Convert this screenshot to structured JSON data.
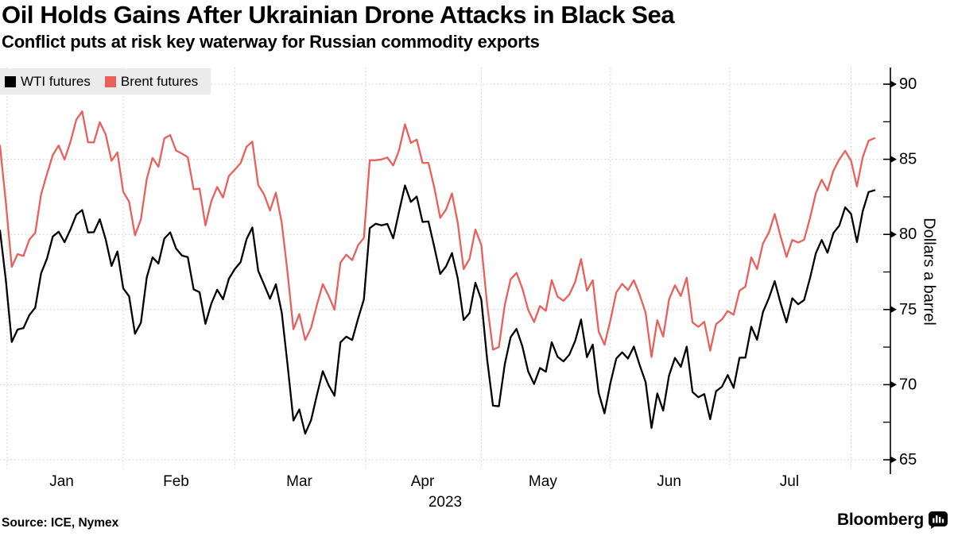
{
  "header": {
    "title": "Oil Holds Gains After Ukrainian Drone Attacks in Black Sea",
    "subtitle": "Conflict puts at risk key waterway for Russian commodity exports"
  },
  "footer": {
    "source": "Source: ICE, Nymex",
    "brand": "Bloomberg"
  },
  "chart_data": {
    "type": "line",
    "title": "Oil Holds Gains After Ukrainian Drone Attacks in Black Sea",
    "subtitle": "Conflict puts at risk key waterway for Russian commodity exports",
    "ylabel": "Dollars a barrel",
    "xlabel": "",
    "year_label": "2023",
    "ylim": [
      65,
      90
    ],
    "yticks": [
      65,
      70,
      75,
      80,
      85,
      90
    ],
    "yticks_minor": [
      67.5,
      72.5,
      77.5,
      82.5,
      87.5
    ],
    "grid": true,
    "legend_position": "top-left",
    "colors": {
      "grid": "#c9c9c9",
      "axis": "#000000",
      "legend_bg": "#ebebeb",
      "wti": "#000000",
      "brent": "#e85f5c"
    },
    "months": [
      {
        "label": "Jan",
        "center_idx": 10.5
      },
      {
        "label": "Feb",
        "center_idx": 30
      },
      {
        "label": "Mar",
        "center_idx": 51
      },
      {
        "label": "Apr",
        "center_idx": 72
      },
      {
        "label": "May",
        "center_idx": 92.5
      },
      {
        "label": "Jun",
        "center_idx": 114
      },
      {
        "label": "Jul",
        "center_idx": 134.5
      }
    ],
    "month_gridline_idx": [
      1.2,
      21,
      40,
      62.33,
      82,
      104,
      124.33,
      145
    ],
    "dates": [
      "2022-12-30",
      "2023-01-03",
      "2023-01-04",
      "2023-01-05",
      "2023-01-06",
      "2023-01-09",
      "2023-01-10",
      "2023-01-11",
      "2023-01-12",
      "2023-01-13",
      "2023-01-17",
      "2023-01-18",
      "2023-01-19",
      "2023-01-20",
      "2023-01-23",
      "2023-01-24",
      "2023-01-25",
      "2023-01-26",
      "2023-01-27",
      "2023-01-30",
      "2023-01-31",
      "2023-02-01",
      "2023-02-02",
      "2023-02-03",
      "2023-02-06",
      "2023-02-07",
      "2023-02-08",
      "2023-02-09",
      "2023-02-10",
      "2023-02-13",
      "2023-02-14",
      "2023-02-15",
      "2023-02-16",
      "2023-02-17",
      "2023-02-21",
      "2023-02-22",
      "2023-02-23",
      "2023-02-24",
      "2023-02-27",
      "2023-02-28",
      "2023-03-01",
      "2023-03-02",
      "2023-03-03",
      "2023-03-06",
      "2023-03-07",
      "2023-03-08",
      "2023-03-09",
      "2023-03-10",
      "2023-03-13",
      "2023-03-14",
      "2023-03-15",
      "2023-03-16",
      "2023-03-17",
      "2023-03-20",
      "2023-03-21",
      "2023-03-22",
      "2023-03-23",
      "2023-03-24",
      "2023-03-27",
      "2023-03-28",
      "2023-03-29",
      "2023-03-30",
      "2023-03-31",
      "2023-04-03",
      "2023-04-04",
      "2023-04-05",
      "2023-04-06",
      "2023-04-10",
      "2023-04-11",
      "2023-04-12",
      "2023-04-13",
      "2023-04-14",
      "2023-04-17",
      "2023-04-18",
      "2023-04-19",
      "2023-04-20",
      "2023-04-21",
      "2023-04-24",
      "2023-04-25",
      "2023-04-26",
      "2023-04-27",
      "2023-04-28",
      "2023-05-01",
      "2023-05-02",
      "2023-05-03",
      "2023-05-04",
      "2023-05-05",
      "2023-05-08",
      "2023-05-09",
      "2023-05-10",
      "2023-05-11",
      "2023-05-12",
      "2023-05-15",
      "2023-05-16",
      "2023-05-17",
      "2023-05-18",
      "2023-05-19",
      "2023-05-22",
      "2023-05-23",
      "2023-05-24",
      "2023-05-25",
      "2023-05-26",
      "2023-05-30",
      "2023-05-31",
      "2023-06-01",
      "2023-06-02",
      "2023-06-05",
      "2023-06-06",
      "2023-06-07",
      "2023-06-08",
      "2023-06-09",
      "2023-06-12",
      "2023-06-13",
      "2023-06-14",
      "2023-06-15",
      "2023-06-16",
      "2023-06-20",
      "2023-06-21",
      "2023-06-22",
      "2023-06-23",
      "2023-06-26",
      "2023-06-27",
      "2023-06-28",
      "2023-06-29",
      "2023-06-30",
      "2023-07-03",
      "2023-07-05",
      "2023-07-06",
      "2023-07-07",
      "2023-07-10",
      "2023-07-11",
      "2023-07-12",
      "2023-07-13",
      "2023-07-14",
      "2023-07-17",
      "2023-07-18",
      "2023-07-19",
      "2023-07-20",
      "2023-07-21",
      "2023-07-24",
      "2023-07-25",
      "2023-07-26",
      "2023-07-27",
      "2023-07-28",
      "2023-07-31",
      "2023-08-01",
      "2023-08-02",
      "2023-08-03",
      "2023-08-04",
      "2023-08-07"
    ],
    "series": [
      {
        "name": "WTI futures",
        "color": "#000000",
        "values": [
          80.26,
          76.93,
          72.84,
          73.67,
          73.77,
          74.63,
          75.12,
          77.41,
          78.39,
          79.86,
          80.18,
          79.48,
          80.33,
          81.31,
          81.62,
          80.13,
          80.15,
          81.01,
          79.68,
          77.9,
          78.87,
          76.41,
          75.88,
          73.39,
          74.11,
          77.14,
          78.47,
          78.06,
          79.72,
          80.14,
          79.06,
          78.59,
          78.49,
          76.34,
          76.16,
          74.05,
          75.39,
          76.32,
          75.68,
          77.05,
          77.69,
          78.16,
          79.68,
          80.46,
          77.58,
          76.66,
          75.72,
          76.68,
          74.8,
          71.33,
          67.61,
          68.35,
          66.74,
          67.64,
          69.33,
          70.9,
          69.96,
          69.26,
          72.81,
          73.2,
          72.97,
          74.37,
          75.67,
          80.42,
          80.71,
          80.61,
          80.7,
          79.74,
          81.53,
          83.26,
          82.16,
          82.52,
          80.83,
          80.86,
          79.16,
          77.37,
          77.87,
          78.76,
          77.07,
          74.3,
          74.76,
          76.78,
          75.66,
          71.66,
          68.6,
          68.56,
          71.34,
          73.16,
          73.71,
          72.56,
          70.87,
          70.04,
          71.11,
          70.86,
          72.83,
          71.86,
          71.55,
          71.99,
          72.91,
          74.34,
          71.83,
          72.67,
          69.46,
          68.09,
          70.1,
          71.74,
          72.15,
          71.74,
          72.53,
          71.29,
          70.17,
          67.12,
          69.42,
          68.27,
          70.62,
          71.78,
          71.19,
          72.53,
          69.51,
          69.16,
          69.37,
          67.7,
          69.56,
          69.86,
          70.64,
          69.79,
          71.79,
          71.8,
          73.86,
          72.99,
          74.83,
          75.75,
          76.89,
          75.42,
          74.15,
          75.75,
          75.35,
          75.63,
          77.07,
          78.74,
          79.63,
          78.78,
          80.09,
          80.58,
          81.8,
          81.37,
          79.49,
          81.55,
          82.82,
          82.94
        ]
      },
      {
        "name": "Brent futures",
        "color": "#e85f5c",
        "values": [
          85.91,
          82.1,
          77.84,
          78.69,
          78.57,
          79.65,
          80.1,
          82.67,
          84.03,
          85.28,
          85.92,
          84.98,
          86.16,
          87.63,
          88.19,
          86.13,
          86.12,
          87.47,
          86.66,
          84.9,
          85.46,
          82.84,
          82.17,
          79.94,
          80.99,
          83.69,
          85.09,
          84.5,
          86.39,
          86.61,
          85.58,
          85.38,
          85.14,
          83.0,
          83.05,
          80.6,
          82.21,
          83.16,
          82.45,
          83.89,
          84.31,
          84.75,
          85.83,
          86.18,
          83.29,
          82.66,
          81.59,
          82.78,
          80.77,
          77.45,
          73.69,
          74.7,
          72.97,
          73.79,
          75.32,
          76.69,
          75.91,
          74.99,
          78.12,
          78.65,
          78.28,
          79.27,
          79.77,
          84.93,
          84.94,
          84.99,
          85.12,
          84.58,
          85.61,
          87.33,
          86.09,
          86.31,
          84.76,
          84.77,
          83.12,
          81.1,
          81.66,
          82.73,
          80.77,
          77.69,
          78.37,
          80.33,
          79.31,
          75.32,
          72.33,
          72.5,
          75.3,
          77.01,
          77.44,
          76.41,
          74.98,
          74.17,
          75.23,
          74.91,
          76.96,
          75.86,
          75.58,
          75.99,
          76.84,
          78.36,
          76.26,
          76.95,
          73.54,
          72.66,
          74.28,
          76.13,
          76.71,
          76.29,
          76.95,
          75.96,
          74.79,
          71.84,
          74.29,
          73.2,
          75.67,
          76.61,
          75.9,
          77.12,
          74.14,
          73.85,
          74.18,
          72.26,
          74.03,
          74.34,
          74.9,
          74.65,
          76.25,
          76.52,
          78.47,
          77.69,
          79.4,
          80.11,
          81.36,
          79.87,
          78.5,
          79.63,
          79.46,
          79.64,
          81.07,
          82.74,
          83.64,
          82.92,
          84.24,
          84.99,
          85.56,
          84.91,
          83.2,
          85.14,
          86.24,
          86.4
        ]
      }
    ]
  }
}
